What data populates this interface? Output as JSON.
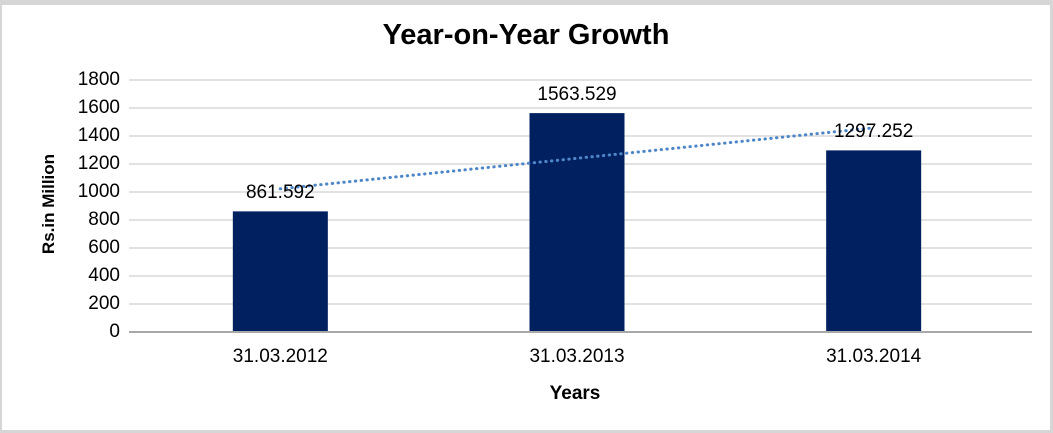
{
  "window": {
    "background_color": "#ffffff",
    "frame_color": "#d6d6d6"
  },
  "chart_data": {
    "type": "bar",
    "title": "Year-on-Year Growth",
    "xlabel": "Years",
    "ylabel": "Rs.in Million",
    "categories": [
      "31.03.2012",
      "31.03.2013",
      "31.03.2014"
    ],
    "values": [
      861.592,
      1563.529,
      1297.252
    ],
    "data_labels": [
      "861.592",
      "1563.529",
      "1297.252"
    ],
    "ylim": [
      0,
      1800
    ],
    "yticks": [
      0,
      200,
      400,
      600,
      800,
      1000,
      1200,
      1400,
      1600,
      1800
    ],
    "grid": true,
    "legend": "none",
    "bar_color": "#002060",
    "gridline_color": "#d9d9d9",
    "axis_line_color": "#a8a8a8",
    "text_color": "#000000",
    "trendline": {
      "type": "linear",
      "style": "dotted",
      "color": "#4e87c8"
    }
  }
}
